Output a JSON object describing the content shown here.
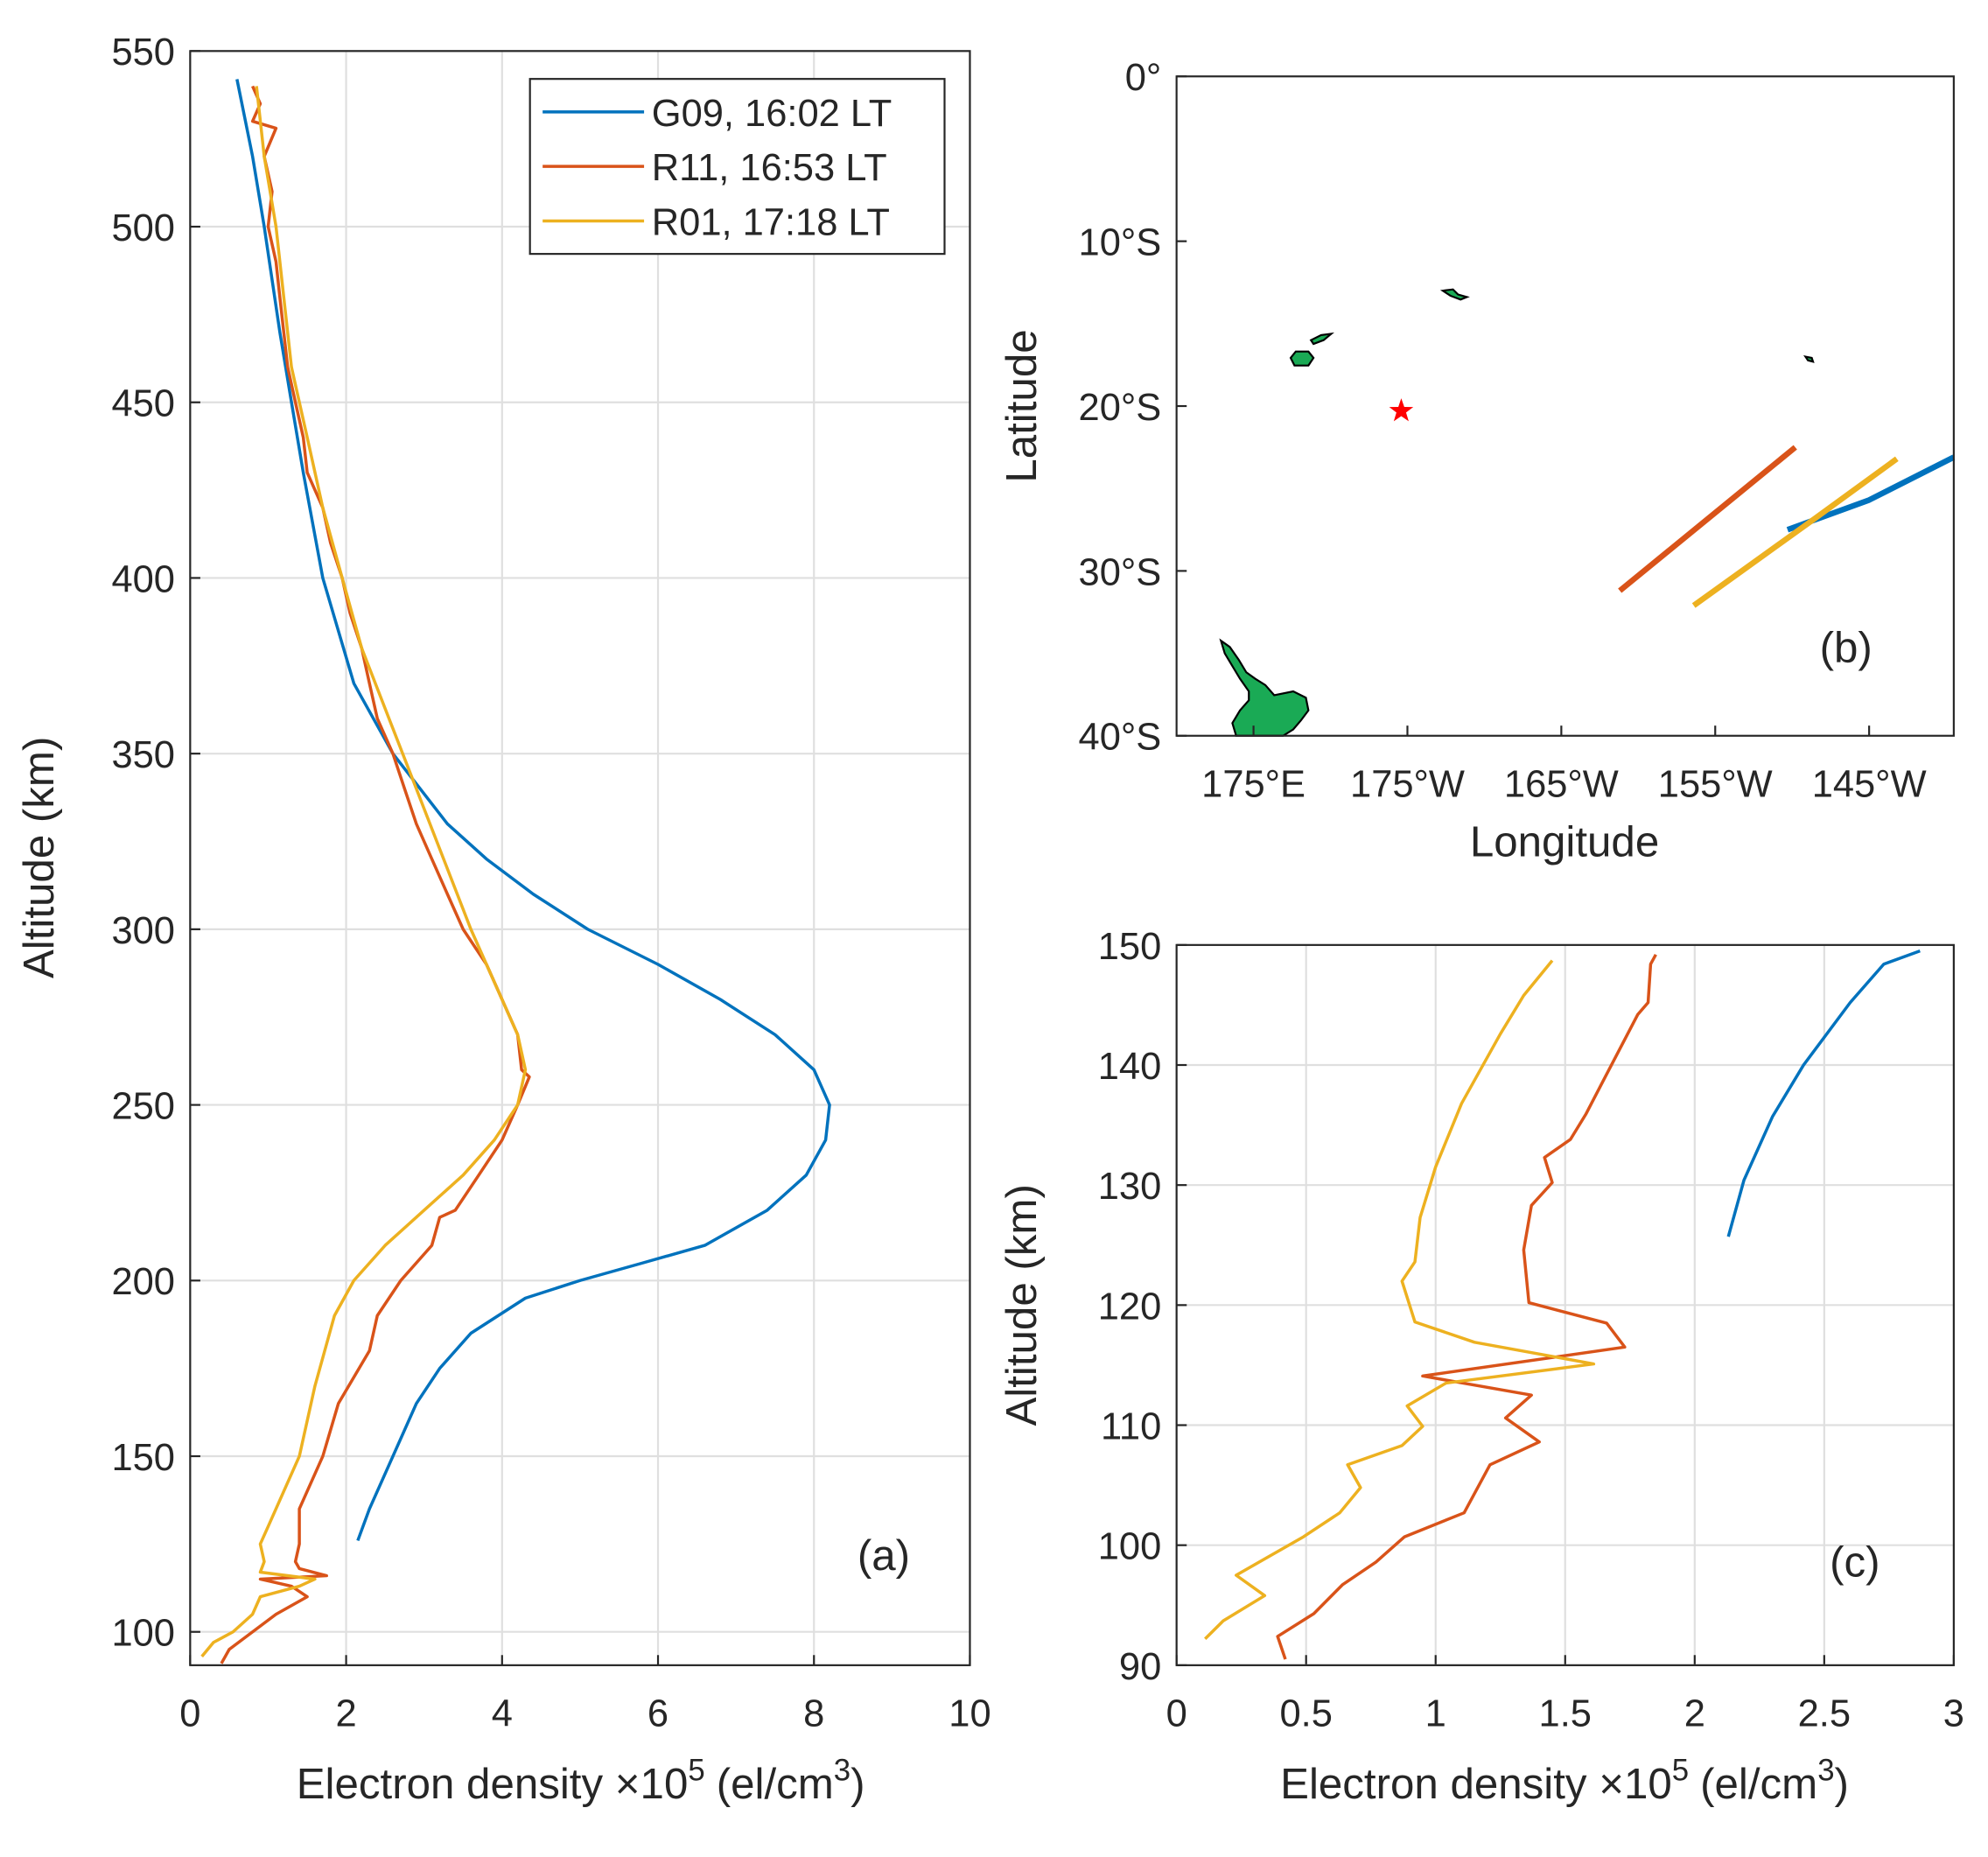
{
  "chart_data": [
    {
      "type": "line",
      "panel_label": "(a)",
      "xlabel": [
        "Electron density ×10",
        "5",
        "(el/cm",
        "3",
        ")"
      ],
      "ylabel": "Altitude (km)",
      "xlim": [
        0,
        10
      ],
      "xticks": [
        0,
        2,
        4,
        6,
        8,
        10
      ],
      "ylim": [
        90.5,
        550
      ],
      "yticks": [
        100,
        150,
        200,
        250,
        300,
        350,
        400,
        450,
        500,
        550
      ],
      "grid": true,
      "legend": "northeast",
      "series": [
        {
          "name": "G09, 16:02 LT",
          "color": "#0072BD",
          "values": [
            2.15,
            2.3,
            2.6,
            2.9,
            3.2,
            3.6,
            4.3,
            5.0,
            5.8,
            6.6,
            7.4,
            7.9,
            8.15,
            8.2,
            8.0,
            7.5,
            6.8,
            6.0,
            5.1,
            4.4,
            3.8,
            3.3,
            2.6,
            2.1,
            1.7,
            1.45,
            1.3,
            1.15,
            0.95,
            0.8,
            0.6
          ],
          "y": [
            126,
            135,
            150,
            165,
            175,
            185,
            195,
            200,
            205,
            210,
            220,
            230,
            240,
            250,
            260,
            270,
            280,
            290,
            300,
            310,
            320,
            330,
            350,
            370,
            400,
            430,
            450,
            470,
            500,
            520,
            542
          ]
        },
        {
          "name": "R11, 16:53 LT",
          "color": "#D95319",
          "values": [
            0.4,
            0.5,
            0.8,
            1.1,
            1.5,
            1.3,
            0.9,
            1.75,
            1.4,
            1.35,
            1.4,
            1.4,
            1.7,
            1.9,
            2.3,
            2.4,
            2.7,
            3.1,
            3.2,
            3.4,
            3.7,
            4.0,
            4.2,
            4.35,
            4.25,
            4.2,
            4.0,
            3.8,
            3.5,
            3.3,
            3.1,
            2.9,
            2.75,
            2.6,
            2.4,
            2.3,
            2.2,
            2.05,
            1.95,
            1.8,
            1.7,
            1.5,
            1.45,
            1.35,
            1.25,
            1.2,
            1.15,
            1.1,
            1.0,
            1.05,
            0.95,
            1.1,
            0.8,
            0.9,
            0.8
          ],
          "y": [
            91,
            95,
            100,
            105,
            110,
            113,
            115,
            116,
            118,
            120,
            125,
            135,
            150,
            165,
            180,
            190,
            200,
            210,
            218,
            220,
            230,
            240,
            250,
            258,
            260,
            270,
            280,
            290,
            300,
            310,
            320,
            330,
            340,
            350,
            360,
            370,
            380,
            390,
            400,
            410,
            420,
            430,
            440,
            450,
            460,
            470,
            480,
            490,
            500,
            510,
            520,
            528,
            530,
            535,
            540
          ]
        },
        {
          "name": "R01, 17:18 LT",
          "color": "#EDB120",
          "values": [
            0.15,
            0.3,
            0.55,
            0.8,
            0.9,
            1.4,
            1.6,
            0.9,
            0.95,
            0.9,
            1.0,
            1.2,
            1.4,
            1.6,
            1.85,
            2.1,
            2.5,
            3.0,
            3.5,
            3.9,
            4.2,
            4.3,
            4.2,
            4.0,
            3.8,
            3.6,
            3.25,
            2.9,
            2.55,
            2.2,
            1.95,
            1.7,
            1.5,
            1.3,
            1.2,
            1.1,
            0.95,
            0.85
          ],
          "y": [
            93,
            97,
            100,
            105,
            110,
            113,
            115,
            117,
            120,
            125,
            130,
            140,
            150,
            170,
            190,
            200,
            210,
            220,
            230,
            240,
            250,
            260,
            270,
            280,
            290,
            300,
            320,
            340,
            360,
            380,
            400,
            420,
            440,
            460,
            480,
            500,
            520,
            540
          ]
        }
      ]
    },
    {
      "type": "map",
      "panel_label": "(b)",
      "xlabel": [
        "Longitude"
      ],
      "ylabel": "Latitude",
      "xlim": [
        170,
        220.5
      ],
      "xticks": [
        {
          "value": 175,
          "label": "175°E"
        },
        {
          "value": 185,
          "label": "175°W"
        },
        {
          "value": 195,
          "label": "165°W"
        },
        {
          "value": 205,
          "label": "155°W"
        },
        {
          "value": 215,
          "label": "145°W"
        }
      ],
      "ylim": [
        -40,
        0
      ],
      "yticks": [
        {
          "value": 0,
          "label": "0°"
        },
        {
          "value": -10,
          "label": "10°S"
        },
        {
          "value": -20,
          "label": "20°S"
        },
        {
          "value": -30,
          "label": "30°S"
        },
        {
          "value": -40,
          "label": "40°S"
        }
      ],
      "grid": false,
      "series": [
        {
          "color": "#0072BD",
          "x": [
            209.7,
            215,
            220.5
          ],
          "values": [
            -27.5,
            -25.7,
            -23.1
          ]
        },
        {
          "color": "#D95319",
          "x": [
            198.8,
            210.2
          ],
          "values": [
            -31.2,
            -22.5
          ]
        },
        {
          "color": "#EDB120",
          "x": [
            203.6,
            211.5,
            216.8
          ],
          "values": [
            -32.1,
            -26.8,
            -23.2
          ]
        }
      ],
      "points": [
        {
          "x": 184.6,
          "y": -20.3,
          "color": "#ff0000"
        }
      ]
    },
    {
      "type": "line",
      "panel_label": "(c)",
      "xlabel": [
        "Electron density ×10",
        "5",
        "(el/cm",
        "3",
        ")"
      ],
      "ylabel": "Altitude (km)",
      "xlim": [
        0,
        3
      ],
      "xticks": [
        0,
        0.5,
        1,
        1.5,
        2,
        2.5,
        3
      ],
      "ylim": [
        90,
        150
      ],
      "yticks": [
        90,
        100,
        110,
        120,
        130,
        140,
        150
      ],
      "grid": true,
      "series": [
        {
          "color": "#0072BD",
          "values": [
            2.13,
            2.19,
            2.3,
            2.42,
            2.6,
            2.73,
            2.87
          ],
          "y": [
            125.7,
            130.4,
            135.7,
            140,
            145.2,
            148.4,
            149.5
          ]
        },
        {
          "color": "#D95319",
          "values": [
            0.42,
            0.39,
            0.53,
            0.64,
            0.77,
            0.88,
            1.11,
            1.21,
            1.4,
            1.27,
            1.37,
            0.95,
            1.73,
            1.66,
            1.36,
            1.34,
            1.37,
            1.45,
            1.42,
            1.52,
            1.58,
            1.64,
            1.78,
            1.82,
            1.83,
            1.85
          ],
          "y": [
            90.5,
            92.4,
            94.3,
            96.7,
            98.6,
            100.7,
            102.7,
            106.7,
            108.6,
            110.6,
            112.5,
            114.1,
            116.5,
            118.5,
            120.2,
            124.6,
            128.3,
            130.2,
            132.3,
            133.8,
            135.9,
            138.4,
            144.2,
            145.2,
            148.4,
            149.2
          ]
        },
        {
          "color": "#EDB120",
          "values": [
            0.11,
            0.18,
            0.34,
            0.23,
            0.49,
            0.63,
            0.71,
            0.66,
            0.87,
            0.95,
            0.89,
            1.04,
            1.61,
            1.15,
            0.92,
            0.87,
            0.92,
            0.94,
            1.0,
            1.1,
            1.25,
            1.34,
            1.45
          ],
          "y": [
            92.2,
            93.7,
            95.8,
            97.5,
            100.7,
            102.7,
            104.8,
            106.7,
            108.3,
            109.9,
            111.6,
            113.5,
            115.1,
            116.9,
            118.6,
            122,
            123.6,
            127.3,
            131.5,
            136.8,
            142.6,
            145.8,
            148.7
          ]
        }
      ]
    }
  ]
}
